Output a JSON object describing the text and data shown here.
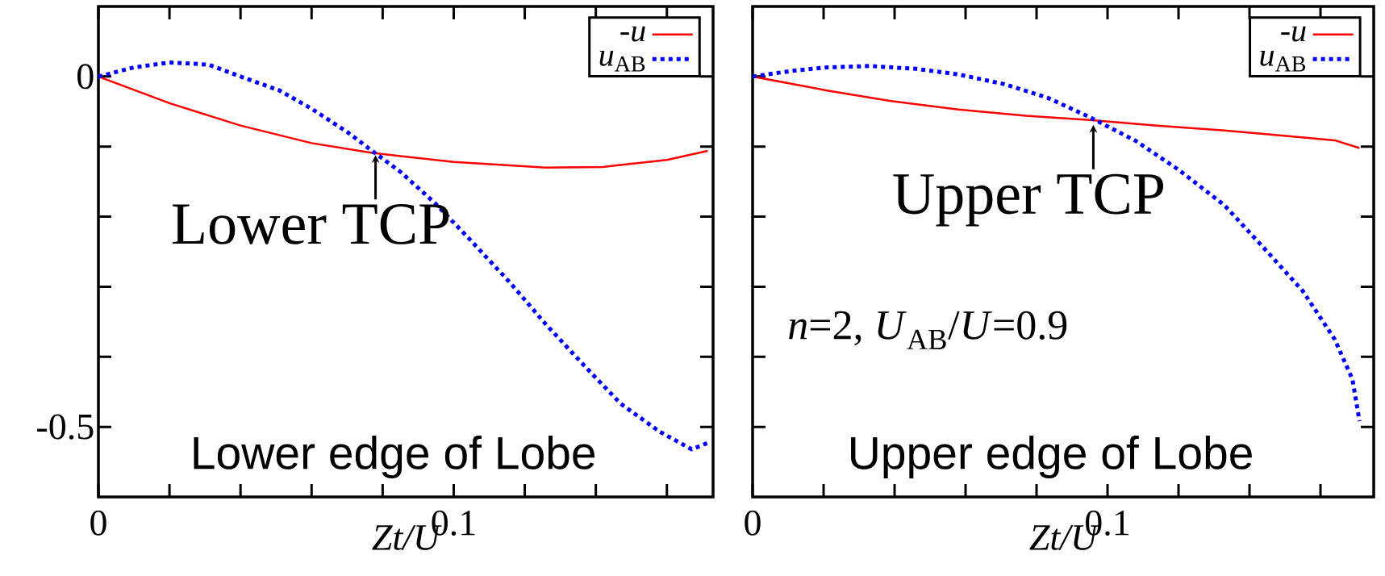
{
  "chart_data": [
    {
      "type": "line",
      "xlabel": "Zt/U",
      "xlim": [
        0,
        0.173
      ],
      "ylim": [
        -0.6,
        0.1
      ],
      "xticks": [
        0,
        {
          "value": 0.02,
          "label": null
        },
        {
          "value": 0.04,
          "label": null
        },
        {
          "value": 0.06,
          "label": null
        },
        {
          "value": 0.08,
          "label": null
        },
        0.1,
        {
          "value": 0.12,
          "label": null
        },
        {
          "value": 0.14,
          "label": null
        },
        {
          "value": 0.16,
          "label": null
        }
      ],
      "yticks": [
        0,
        {
          "value": -0.1,
          "label": null
        },
        {
          "value": -0.2,
          "label": null
        },
        {
          "value": -0.3,
          "label": null
        },
        {
          "value": -0.4,
          "label": null
        },
        -0.5
      ],
      "legend": "top right",
      "series": [
        {
          "name": "-*u*",
          "color": "#ff0000",
          "line_style": "solid",
          "x": [
            0,
            0.02,
            0.04,
            0.06,
            0.077,
            0.1,
            0.126,
            0.142,
            0.16,
            0.1715
          ],
          "values": [
            0,
            -0.038,
            -0.07,
            -0.095,
            -0.109,
            -0.122,
            -0.13,
            -0.129,
            -0.119,
            -0.106
          ]
        },
        {
          "name": "*u*$_{AB}$",
          "color": "#0000ff",
          "line_style": "dotted",
          "x": [
            0,
            0.01,
            0.02,
            0.031,
            0.04,
            0.051,
            0.06,
            0.07,
            0.077,
            0.085,
            0.095,
            0.105,
            0.116,
            0.126,
            0.137,
            0.147,
            0.158,
            0.167,
            0.1715
          ],
          "values": [
            0,
            0.013,
            0.02,
            0.017,
            0,
            -0.02,
            -0.046,
            -0.079,
            -0.106,
            -0.136,
            -0.182,
            -0.235,
            -0.295,
            -0.354,
            -0.414,
            -0.467,
            -0.507,
            -0.532,
            -0.523
          ]
        }
      ],
      "annotations": [
        {
          "text": "Lower TCP",
          "x": 0.078,
          "y": -0.112
        },
        "Lower edge of Lobe"
      ]
    },
    {
      "type": "line",
      "xlabel": "Zt/U",
      "xlim": [
        0,
        0.175
      ],
      "ylim": [
        -0.6,
        0.1
      ],
      "tick_labels": "x",
      "xticks": [
        0,
        {
          "value": 0.02,
          "label": null
        },
        {
          "value": 0.04,
          "label": null
        },
        {
          "value": 0.06,
          "label": null
        },
        {
          "value": 0.08,
          "label": null
        },
        0.1,
        {
          "value": 0.12,
          "label": null
        },
        {
          "value": 0.14,
          "label": null
        },
        {
          "value": 0.16,
          "label": null
        }
      ],
      "yticks": [
        0,
        {
          "value": -0.1,
          "label": null
        },
        {
          "value": -0.2,
          "label": null
        },
        {
          "value": -0.3,
          "label": null
        },
        {
          "value": -0.4,
          "label": null
        },
        {
          "value": -0.5,
          "label": null
        }
      ],
      "legend": "top right",
      "series": [
        {
          "name": "-*u*",
          "color": "#ff0000",
          "line_style": "solid",
          "x": [
            0,
            0.021,
            0.039,
            0.058,
            0.077,
            0.095,
            0.114,
            0.133,
            0.151,
            0.164,
            0.171
          ],
          "values": [
            0,
            -0.02,
            -0.035,
            -0.047,
            -0.056,
            -0.062,
            -0.07,
            -0.077,
            -0.085,
            -0.091,
            -0.102
          ]
        },
        {
          "name": "*u*$_{AB}$",
          "color": "#0000ff",
          "line_style": "dotted",
          "x": [
            0,
            0.011,
            0.021,
            0.033,
            0.046,
            0.058,
            0.071,
            0.083,
            0.095,
            0.108,
            0.12,
            0.133,
            0.145,
            0.155,
            0.164,
            0.169,
            0.171
          ],
          "values": [
            0,
            0.008,
            0.013,
            0.015,
            0.011,
            0.003,
            -0.011,
            -0.03,
            -0.058,
            -0.092,
            -0.133,
            -0.184,
            -0.25,
            -0.306,
            -0.375,
            -0.432,
            -0.492
          ]
        }
      ],
      "annotations": [
        {
          "text": "Upper TCP",
          "x": 0.096,
          "y": -0.069
        },
        "*n*=2, *U*$_{AB}$/*U*=0.9",
        "Upper edge of Lobe"
      ]
    }
  ]
}
